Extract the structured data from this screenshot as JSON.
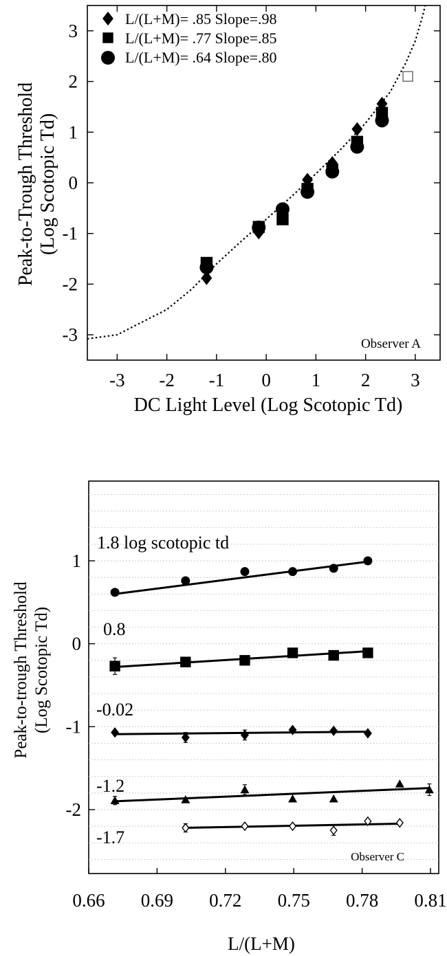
{
  "chart_data": [
    {
      "type": "scatter",
      "title": "",
      "xlabel": "DC Light Level (Log Scotopic Td)",
      "ylabel": [
        "Peak-to-Trough Threshold",
        "(Log Scotopic Td)"
      ],
      "xlim": [
        -3.6,
        3.5
      ],
      "ylim": [
        -3.5,
        3.5
      ],
      "xticks": [
        -3,
        -2,
        -1,
        0,
        1,
        2,
        3
      ],
      "yticks": [
        -3,
        -2,
        -1,
        0,
        1,
        2,
        3
      ],
      "xtick_labels": [
        "-3",
        "-2",
        "-1",
        "0",
        "1",
        "2",
        "3"
      ],
      "ytick_labels": [
        "-3",
        "-2",
        "-1",
        "0",
        "1",
        "2",
        "3"
      ],
      "legend_position": "top-left",
      "annotation": "Observer A",
      "series": [
        {
          "name": "L/(L+M)= .85 Slope=.98",
          "marker": "diamond",
          "points": [
            [
              -1.2,
              -1.88
            ],
            [
              -0.15,
              -0.98
            ],
            [
              0.33,
              -0.62
            ],
            [
              0.83,
              0.06
            ],
            [
              1.33,
              0.39
            ],
            [
              1.83,
              1.06
            ],
            [
              2.33,
              1.56
            ]
          ]
        },
        {
          "name": "L/(L+M)= .77 Slope=.85",
          "marker": "square",
          "points": [
            [
              -1.2,
              -1.58
            ],
            [
              -0.15,
              -0.87
            ],
            [
              0.33,
              -0.72
            ],
            [
              0.83,
              -0.12
            ],
            [
              1.33,
              0.26
            ],
            [
              1.83,
              0.81
            ],
            [
              2.33,
              1.38
            ]
          ]
        },
        {
          "name": "L/(L+M)= .64 Slope=.80",
          "marker": "circle",
          "points": [
            [
              -1.2,
              -1.67
            ],
            [
              -0.15,
              -0.88
            ],
            [
              0.33,
              -0.52
            ],
            [
              0.83,
              -0.18
            ],
            [
              1.33,
              0.22
            ],
            [
              1.83,
              0.71
            ],
            [
              2.33,
              1.23
            ]
          ]
        },
        {
          "name": "",
          "marker": "open-square",
          "points": [
            [
              2.85,
              2.1
            ]
          ]
        }
      ],
      "dotted_curve": [
        [
          -3.6,
          -3.08
        ],
        [
          -3.0,
          -3.0
        ],
        [
          -2.5,
          -2.75
        ],
        [
          -2.0,
          -2.5
        ],
        [
          -1.5,
          -2.1
        ],
        [
          -1.0,
          -1.6
        ],
        [
          -0.5,
          -1.15
        ],
        [
          0.0,
          -0.72
        ],
        [
          0.5,
          -0.28
        ],
        [
          1.0,
          0.18
        ],
        [
          1.5,
          0.66
        ],
        [
          2.0,
          1.18
        ],
        [
          2.5,
          1.8
        ],
        [
          2.8,
          2.35
        ],
        [
          3.0,
          2.8
        ],
        [
          3.15,
          3.3
        ],
        [
          3.2,
          3.5
        ]
      ]
    },
    {
      "type": "scatter",
      "title": "",
      "xlabel": "L/(L+M)",
      "ylabel": [
        "Peak-to-trough Threshold",
        "(Log Scotopic Td)"
      ],
      "xlim": [
        0.655,
        0.81
      ],
      "ylim": [
        -3.0,
        1.85
      ],
      "xticks": [
        0.66,
        0.69,
        0.72,
        0.75,
        0.78,
        0.81
      ],
      "yticks": [
        -2,
        -1,
        0,
        1
      ],
      "xtick_labels": [
        "0.66",
        "0.69",
        "0.72",
        "0.75",
        "0.78",
        "0.81"
      ],
      "ytick_labels": [
        "-2",
        "-1",
        "0",
        "1"
      ],
      "grid": true,
      "annotation": "Observer C",
      "series": [
        {
          "name": "1.8 log scotopic td",
          "marker": "circle",
          "points": [
            [
              0.6715,
              0.62
            ],
            [
              0.7025,
              0.76
            ],
            [
              0.7285,
              0.87
            ],
            [
              0.7495,
              0.87
            ],
            [
              0.7675,
              0.91
            ],
            [
              0.7825,
              1.0
            ]
          ],
          "errors": [
            0,
            0,
            0,
            0,
            0,
            0
          ],
          "fit": [
            [
              0.6715,
              0.6
            ],
            [
              0.7825,
              0.99
            ]
          ]
        },
        {
          "name": "0.8",
          "marker": "square",
          "points": [
            [
              0.6715,
              -0.27
            ],
            [
              0.7025,
              -0.22
            ],
            [
              0.7285,
              -0.2
            ],
            [
              0.7495,
              -0.11
            ],
            [
              0.7675,
              -0.14
            ],
            [
              0.7825,
              -0.11
            ]
          ],
          "errors": [
            0.1,
            0,
            0,
            0,
            0,
            0.05
          ],
          "fit": [
            [
              0.6715,
              -0.28
            ],
            [
              0.7825,
              -0.09
            ]
          ]
        },
        {
          "name": "-0.02",
          "marker": "diamond",
          "points": [
            [
              0.6715,
              -1.07
            ],
            [
              0.7025,
              -1.13
            ],
            [
              0.7285,
              -1.1
            ],
            [
              0.7495,
              -1.04
            ],
            [
              0.7675,
              -1.05
            ],
            [
              0.7825,
              -1.08
            ]
          ],
          "errors": [
            0,
            0.06,
            0.06,
            0,
            0,
            0
          ],
          "fit": [
            [
              0.6715,
              -1.09
            ],
            [
              0.7825,
              -1.06
            ]
          ]
        },
        {
          "name": "-1.2",
          "marker": "triangle",
          "points": [
            [
              0.6715,
              -1.89
            ],
            [
              0.7025,
              -1.88
            ],
            [
              0.7285,
              -1.76
            ],
            [
              0.7495,
              -1.87
            ],
            [
              0.7675,
              -1.87
            ],
            [
              0.7965,
              -1.69
            ],
            [
              0.8095,
              -1.76
            ]
          ],
          "errors": [
            0.05,
            0,
            0.06,
            0,
            0,
            0,
            0.07
          ],
          "fit": [
            [
              0.6715,
              -1.9
            ],
            [
              0.8095,
              -1.74
            ]
          ]
        },
        {
          "name": "-1.7",
          "marker": "open-diamond",
          "points": [
            [
              0.7025,
              -2.22
            ],
            [
              0.7285,
              -2.2
            ],
            [
              0.7495,
              -2.2
            ],
            [
              0.7675,
              -2.25
            ],
            [
              0.7825,
              -2.14
            ],
            [
              0.7965,
              -2.16
            ]
          ],
          "errors": [
            0.05,
            0,
            0,
            0.06,
            0,
            0
          ],
          "fit": [
            [
              0.7025,
              -2.22
            ],
            [
              0.7965,
              -2.17
            ]
          ]
        }
      ]
    }
  ]
}
